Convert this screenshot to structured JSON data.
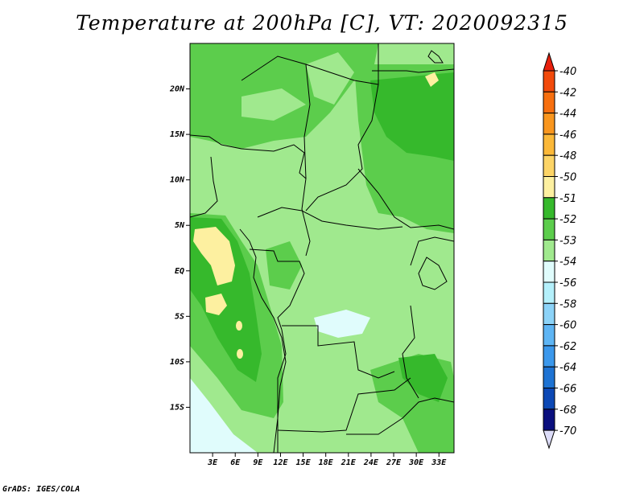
{
  "title": "Temperature at 200hPa [C], VT: 2020092315",
  "credit": "GrADS: IGES/COLA",
  "map": {
    "variable": "Temperature at 200hPa",
    "units": "C",
    "valid_time": "2020092315",
    "lat_range": [
      -20,
      25
    ],
    "lon_range": [
      0,
      35
    ],
    "lat_ticks": [
      {
        "value": 20,
        "label": "20N"
      },
      {
        "value": 15,
        "label": "15N"
      },
      {
        "value": 10,
        "label": "10N"
      },
      {
        "value": 5,
        "label": "5N"
      },
      {
        "value": 0,
        "label": "EQ"
      },
      {
        "value": -5,
        "label": "5S"
      },
      {
        "value": -10,
        "label": "10S"
      },
      {
        "value": -15,
        "label": "15S"
      }
    ],
    "lon_ticks": [
      {
        "value": 3,
        "label": "3E"
      },
      {
        "value": 6,
        "label": "6E"
      },
      {
        "value": 9,
        "label": "9E"
      },
      {
        "value": 12,
        "label": "12E"
      },
      {
        "value": 15,
        "label": "15E"
      },
      {
        "value": 18,
        "label": "18E"
      },
      {
        "value": 21,
        "label": "21E"
      },
      {
        "value": 24,
        "label": "24E"
      },
      {
        "value": 27,
        "label": "27E"
      },
      {
        "value": 30,
        "label": "30E"
      },
      {
        "value": 33,
        "label": "33E"
      }
    ]
  },
  "colorbar": {
    "levels": [
      "-40",
      "-42",
      "-44",
      "-46",
      "-48",
      "-50",
      "-51",
      "-52",
      "-53",
      "-54",
      "-56",
      "-58",
      "-60",
      "-62",
      "-64",
      "-66",
      "-68",
      "-70"
    ],
    "colors": [
      "#e8200c",
      "#f24a0b",
      "#f76f0f",
      "#f9961e",
      "#fbb838",
      "#fcd466",
      "#fdf0a0",
      "#36b92c",
      "#5ccd4c",
      "#a0e98e",
      "#e0fcfc",
      "#b4f0fb",
      "#8cd3f8",
      "#5eb5f4",
      "#3b98ec",
      "#1e73d3",
      "#0c48b5",
      "#0a0f7e",
      "#dcdcf8"
    ]
  }
}
